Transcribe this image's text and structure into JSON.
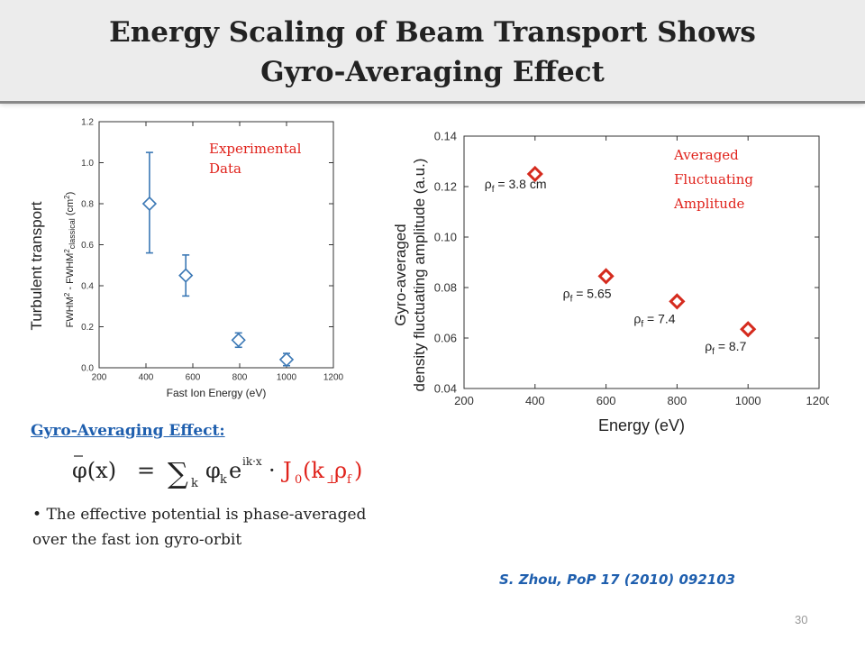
{
  "slide": {
    "title_line1": "Energy Scaling of Beam Transport Shows",
    "title_line2": "Gyro-Averaging Effect",
    "section_heading": "Gyro-Averaging Effect:",
    "bullet": "The effective potential is phase-averaged over the fast ion gyro-orbit",
    "citation": "S. Zhou, PoP 17 (2010) 092103",
    "page_number": "30"
  },
  "equation": {
    "lhs": "φ(x)",
    "eq": "=",
    "sum": "∑",
    "sub_k": "k",
    "phi": "φ",
    "e": "e",
    "exp": "ik·x",
    "dot": "·",
    "bessel": "J",
    "bessel_sub": "0",
    "arg_open": "(k",
    "perp": "⊥",
    "rho": "ρ",
    "rho_sub": "f",
    "arg_close": ")",
    "highlight_color": "#e0231c"
  },
  "chart_data": [
    {
      "type": "scatter",
      "title": "",
      "xlabel": "Fast Ion Energy (eV)",
      "ylabel": "FWHM² - FWHM²classical (cm²)",
      "ylabel_outer": "Turbulent transport",
      "xlim": [
        200,
        1200
      ],
      "ylim": [
        0.0,
        1.2
      ],
      "xticks": [
        200,
        400,
        600,
        800,
        1000,
        1200
      ],
      "xtick_labels": [
        "200",
        "400",
        "600",
        "800",
        "1000",
        "1200"
      ],
      "yticks": [
        0.0,
        0.2,
        0.4,
        0.6,
        0.8,
        1.0,
        1.2
      ],
      "ytick_labels": [
        "0.0",
        "0.2",
        "0.4",
        "0.6",
        "0.8",
        "1.0",
        "1.2"
      ],
      "x": [
        415,
        570,
        795,
        1000
      ],
      "y": [
        0.8,
        0.45,
        0.135,
        0.04
      ],
      "yerr_low": [
        0.56,
        0.35,
        0.1,
        0.01
      ],
      "yerr_high": [
        1.05,
        0.55,
        0.17,
        0.07
      ],
      "marker": "open-diamond",
      "color": "#3b78b5",
      "annotation": "Experimental Data",
      "annotation_color": "#e0231c"
    },
    {
      "type": "scatter",
      "title": "",
      "xlabel": "Energy (eV)",
      "ylabel": "Gyro-averaged density fluctuating amplitude (a.u.)",
      "ylabel_line1": "Gyro-averaged",
      "ylabel_line2": "density fluctuating amplitude (a.u.)",
      "xlim": [
        200,
        1200
      ],
      "ylim": [
        0.04,
        0.14
      ],
      "xticks": [
        200,
        400,
        600,
        800,
        1000,
        1200
      ],
      "xtick_labels": [
        "200",
        "400",
        "600",
        "800",
        "1000",
        "1200"
      ],
      "yticks": [
        0.04,
        0.06,
        0.08,
        0.1,
        0.12,
        0.14
      ],
      "ytick_labels": [
        "0.04",
        "0.06",
        "0.08",
        "0.10",
        "0.12",
        "0.14"
      ],
      "x": [
        400,
        600,
        800,
        1000
      ],
      "y": [
        0.125,
        0.0845,
        0.0745,
        0.0635
      ],
      "point_labels": [
        "ρf = 3.8 cm",
        "ρf = 5.65",
        "ρf = 7.4",
        "ρf = 8.7"
      ],
      "marker": "open-square-rotated",
      "color": "#d52b1e",
      "annotation": "Averaged Fluctuating Amplitude",
      "annotation_color": "#e0231c"
    }
  ]
}
